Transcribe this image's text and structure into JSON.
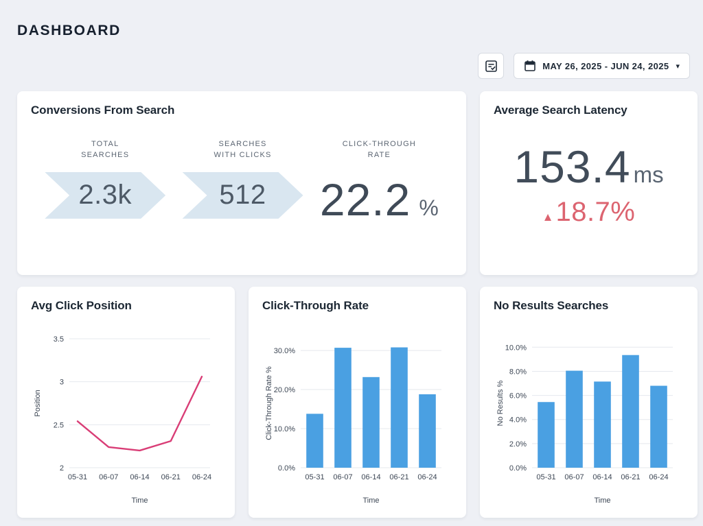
{
  "page": {
    "title": "DASHBOARD"
  },
  "toolbar": {
    "report_button": {
      "icon": "checklist-icon"
    },
    "date_range": {
      "icon": "calendar-icon",
      "value": "MAY 26, 2025 - JUN 24, 2025",
      "caret": "▾"
    }
  },
  "colors": {
    "background": "#eef0f5",
    "card": "#ffffff",
    "funnel_blue": "#d9e6f0",
    "bar_blue": "#4aa0e2",
    "line_pink": "#d93d76",
    "delta_red": "#dc6470",
    "text_dark": "#1c2733"
  },
  "funnel_card": {
    "title": "Conversions From Search",
    "steps": [
      {
        "label_line1": "TOTAL",
        "label_line2": "SEARCHES",
        "value": "2.3k"
      },
      {
        "label_line1": "SEARCHES",
        "label_line2": "WITH CLICKS",
        "value": "512"
      },
      {
        "label_line1": "CLICK-THROUGH",
        "label_line2": "RATE",
        "value": "22.2",
        "unit": "%"
      }
    ]
  },
  "latency_card": {
    "title": "Average Search Latency",
    "value": "153.4",
    "unit": "ms",
    "delta_icon": "▲",
    "delta": "18.7%"
  },
  "charts": [
    {
      "id": "avg-click-position",
      "title": "Avg Click Position",
      "type": "line",
      "color": "#d93d76",
      "x": {
        "label": "Time",
        "categories": [
          "05-31",
          "06-07",
          "06-14",
          "06-21",
          "06-24"
        ]
      },
      "y": {
        "label": "Position",
        "min": 2,
        "max": 3.5,
        "ticks": [
          2,
          2.5,
          3,
          3.5
        ],
        "tick_labels": [
          "2",
          "2.5",
          "3",
          "3.5"
        ]
      },
      "values": [
        2.54,
        2.24,
        2.2,
        2.31,
        3.06
      ]
    },
    {
      "id": "click-through-rate",
      "title": "Click-Through Rate",
      "type": "bar",
      "color": "#4aa0e2",
      "x": {
        "label": "Time",
        "categories": [
          "05-31",
          "06-07",
          "06-14",
          "06-21",
          "06-24"
        ]
      },
      "y": {
        "label": "Click-Through Rate %",
        "min": 0,
        "max": 33,
        "ticks": [
          0,
          10,
          20,
          30
        ],
        "tick_labels": [
          "0.0%",
          "10.0%",
          "20.0%",
          "30.0%"
        ]
      },
      "values": [
        13.8,
        30.7,
        23.2,
        30.8,
        18.8
      ]
    },
    {
      "id": "no-results-searches",
      "title": "No Results Searches",
      "type": "bar",
      "color": "#4aa0e2",
      "x": {
        "label": "Time",
        "categories": [
          "05-31",
          "06-07",
          "06-14",
          "06-21",
          "06-24"
        ]
      },
      "y": {
        "label": "No Results %",
        "min": 0,
        "max": 10.7,
        "ticks": [
          0,
          2,
          4,
          6,
          8,
          10
        ],
        "tick_labels": [
          "0.0%",
          "2.0%",
          "4.0%",
          "6.0%",
          "8.0%",
          "10.0%"
        ]
      },
      "values": [
        5.45,
        8.05,
        7.15,
        9.35,
        6.8
      ]
    }
  ]
}
